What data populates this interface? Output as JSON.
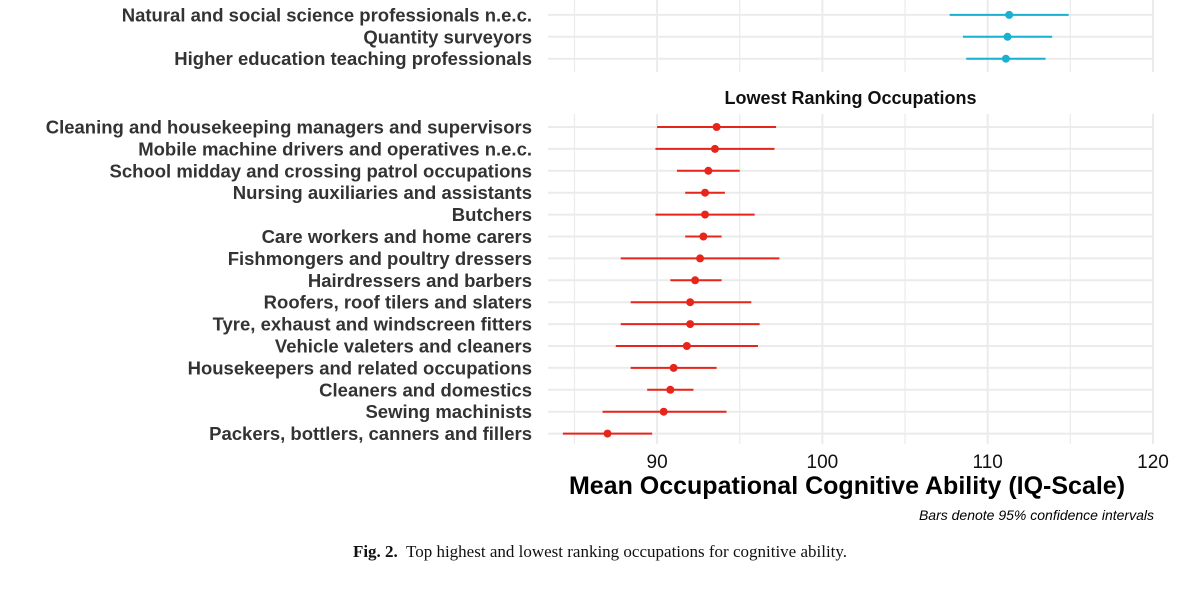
{
  "chart_data": {
    "type": "dot-interval",
    "x_title": "Mean Occupational Cognitive Ability (IQ-Scale)",
    "x_ticks": [
      "90",
      "100",
      "110",
      "120"
    ],
    "xlim": [
      83.4,
      120
    ],
    "note": "Bars denote 95% confidence intervals",
    "colors": {
      "highest": "#1ab0cf",
      "lowest": "#e8251a",
      "grid": "#ebebeb"
    },
    "panels": [
      {
        "id": "highest",
        "title": "",
        "color_key": "highest",
        "rows": [
          {
            "label": "",
            "mean": 111.3,
            "lo": 107.7,
            "hi": 114.9
          },
          {
            "label": "Natural and social science professionals n.e.c.",
            "mean": 111.3,
            "lo": 107.7,
            "hi": 114.9
          },
          {
            "label": "Quantity surveyors",
            "mean": 111.2,
            "lo": 108.5,
            "hi": 113.9
          },
          {
            "label": "Higher education teaching professionals",
            "mean": 111.1,
            "lo": 108.7,
            "hi": 113.5
          }
        ]
      },
      {
        "id": "lowest",
        "title": "Lowest Ranking Occupations",
        "color_key": "lowest",
        "rows": [
          {
            "label": "Cleaning and housekeeping managers and supervisors",
            "mean": 93.6,
            "lo": 90.0,
            "hi": 97.2
          },
          {
            "label": "Mobile machine drivers and operatives n.e.c.",
            "mean": 93.5,
            "lo": 89.9,
            "hi": 97.1
          },
          {
            "label": "School midday and crossing patrol occupations",
            "mean": 93.1,
            "lo": 91.2,
            "hi": 95.0
          },
          {
            "label": "Nursing auxiliaries and assistants",
            "mean": 92.9,
            "lo": 91.7,
            "hi": 94.1
          },
          {
            "label": "Butchers",
            "mean": 92.9,
            "lo": 89.9,
            "hi": 95.9
          },
          {
            "label": "Care workers and home carers",
            "mean": 92.8,
            "lo": 91.7,
            "hi": 93.9
          },
          {
            "label": "Fishmongers and poultry dressers",
            "mean": 92.6,
            "lo": 87.8,
            "hi": 97.4
          },
          {
            "label": "Hairdressers and barbers",
            "mean": 92.3,
            "lo": 90.8,
            "hi": 93.9
          },
          {
            "label": "Roofers, roof tilers and slaters",
            "mean": 92.0,
            "lo": 88.4,
            "hi": 95.7
          },
          {
            "label": "Tyre, exhaust and windscreen fitters",
            "mean": 92.0,
            "lo": 87.8,
            "hi": 96.2
          },
          {
            "label": "Vehicle valeters and cleaners",
            "mean": 91.8,
            "lo": 87.5,
            "hi": 96.1
          },
          {
            "label": "Housekeepers and related occupations",
            "mean": 91.0,
            "lo": 88.4,
            "hi": 93.6
          },
          {
            "label": "Cleaners and domestics",
            "mean": 90.8,
            "lo": 89.4,
            "hi": 92.2
          },
          {
            "label": "Sewing machinists",
            "mean": 90.4,
            "lo": 86.7,
            "hi": 94.2
          },
          {
            "label": "Packers, bottlers, canners and fillers",
            "mean": 87.0,
            "lo": 84.3,
            "hi": 89.7
          }
        ]
      }
    ]
  },
  "caption": {
    "label": "Fig. 2.",
    "text": "Top highest and lowest ranking occupations for cognitive ability."
  }
}
